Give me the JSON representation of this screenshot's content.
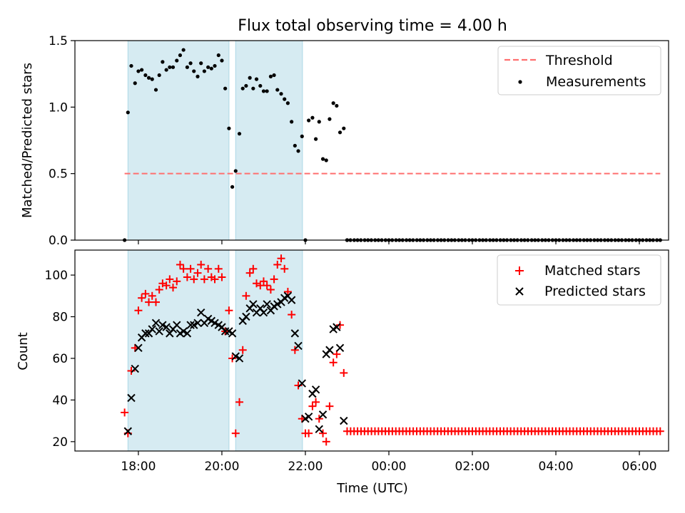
{
  "chart_data": [
    {
      "type": "scatter",
      "title": "Flux total observing time = 4.00 h",
      "xlabel": "",
      "ylabel": "Matched/Predicted stars",
      "ylim": [
        0,
        1.5
      ],
      "yticks": [
        "0.0",
        "0.5",
        "1.0",
        "1.5"
      ],
      "xlim": [
        -1.52,
        12.7
      ],
      "x_unit": "hours from 18:00 UTC",
      "show_x_tick_labels": false,
      "grid": false,
      "legend_position": "upper right",
      "shaded_time_ranges": [
        [
          -0.25,
          2.17
        ],
        [
          2.33,
          3.93
        ]
      ],
      "series": [
        {
          "name": "Threshold",
          "kind": "dashed-line",
          "color": "#ff6f6f",
          "x": [
            -0.33,
            12.5
          ],
          "y": [
            0.5,
            0.5
          ]
        },
        {
          "name": "Measurements",
          "kind": "dot",
          "color": "#000000",
          "x": [
            -0.33,
            -0.25,
            -0.17,
            -0.08,
            0.0,
            0.08,
            0.17,
            0.25,
            0.33,
            0.42,
            0.5,
            0.58,
            0.67,
            0.75,
            0.83,
            0.92,
            1.0,
            1.08,
            1.17,
            1.25,
            1.33,
            1.42,
            1.5,
            1.58,
            1.67,
            1.75,
            1.83,
            1.92,
            2.0,
            2.08,
            2.17,
            2.25,
            2.33,
            2.42,
            2.5,
            2.58,
            2.67,
            2.75,
            2.83,
            2.92,
            3.0,
            3.08,
            3.17,
            3.25,
            3.33,
            3.42,
            3.5,
            3.58,
            3.67,
            3.75,
            3.83,
            3.92,
            4.0,
            4.08,
            4.17,
            4.25,
            4.33,
            4.42,
            4.5,
            4.58,
            4.67,
            4.75,
            4.83,
            4.92,
            5.0
          ],
          "y": [
            0.0,
            0.96,
            1.31,
            1.18,
            1.27,
            1.28,
            1.24,
            1.22,
            1.21,
            1.13,
            1.24,
            1.34,
            1.28,
            1.3,
            1.3,
            1.35,
            1.39,
            1.43,
            1.3,
            1.33,
            1.27,
            1.23,
            1.33,
            1.27,
            1.3,
            1.29,
            1.31,
            1.39,
            1.35,
            1.14,
            0.84,
            0.4,
            0.52,
            0.8,
            1.14,
            1.16,
            1.22,
            1.14,
            1.21,
            1.16,
            1.12,
            1.12,
            1.23,
            1.24,
            1.13,
            1.1,
            1.06,
            1.03,
            0.89,
            0.71,
            0.67,
            0.78,
            0.0,
            0.9,
            0.92,
            0.76,
            0.89,
            0.61,
            0.6,
            0.91,
            1.03,
            1.01,
            0.81,
            0.84,
            0.0
          ]
        }
      ],
      "zero_measurements_x": [
        5.0,
        5.08,
        5.17,
        5.25,
        5.33,
        5.42,
        5.5,
        5.58,
        5.67,
        5.75,
        5.83,
        5.92,
        6.0,
        6.08,
        6.17,
        6.25,
        6.33,
        6.42,
        6.5,
        6.58,
        6.67,
        6.75,
        6.83,
        6.92,
        7.0,
        7.08,
        7.17,
        7.25,
        7.33,
        7.42,
        7.5,
        7.58,
        7.67,
        7.75,
        7.83,
        7.92,
        8.0,
        8.08,
        8.17,
        8.25,
        8.33,
        8.42,
        8.5,
        8.58,
        8.67,
        8.75,
        8.83,
        8.92,
        9.0,
        9.08,
        9.17,
        9.25,
        9.33,
        9.42,
        9.5,
        9.58,
        9.67,
        9.75,
        9.83,
        9.92,
        10.0,
        10.08,
        10.17,
        10.25,
        10.33,
        10.42,
        10.5,
        10.58,
        10.67,
        10.75,
        10.83,
        10.92,
        11.0,
        11.08,
        11.17,
        11.25,
        11.33,
        11.42,
        11.5,
        11.58,
        11.67,
        11.75,
        11.83,
        11.92,
        12.0,
        12.08,
        12.17,
        12.25,
        12.33,
        12.42,
        12.5
      ]
    },
    {
      "type": "scatter",
      "title": "",
      "xlabel": "Time (UTC)",
      "ylabel": "Count",
      "ylim": [
        15.5,
        112
      ],
      "yticks": [
        "20",
        "40",
        "60",
        "80",
        "100"
      ],
      "xlim": [
        -1.52,
        12.7
      ],
      "x_unit": "hours from 18:00 UTC",
      "xticks": [
        "18:00",
        "20:00",
        "22:00",
        "00:00",
        "02:00",
        "04:00",
        "06:00"
      ],
      "grid": false,
      "legend_position": "upper right",
      "shaded_time_ranges": [
        [
          -0.25,
          2.17
        ],
        [
          2.33,
          3.93
        ]
      ],
      "series": [
        {
          "name": "Matched stars",
          "kind": "plus",
          "color": "#ff0000",
          "x": [
            -0.33,
            -0.25,
            -0.17,
            -0.08,
            0.0,
            0.08,
            0.17,
            0.25,
            0.33,
            0.42,
            0.5,
            0.58,
            0.67,
            0.75,
            0.83,
            0.92,
            1.0,
            1.08,
            1.17,
            1.25,
            1.33,
            1.42,
            1.5,
            1.58,
            1.67,
            1.75,
            1.83,
            1.92,
            2.0,
            2.08,
            2.17,
            2.25,
            2.33,
            2.42,
            2.5,
            2.58,
            2.67,
            2.75,
            2.83,
            2.92,
            3.0,
            3.08,
            3.17,
            3.25,
            3.33,
            3.42,
            3.5,
            3.58,
            3.67,
            3.75,
            3.83,
            3.92,
            4.0,
            4.08,
            4.17,
            4.25,
            4.33,
            4.42,
            4.5,
            4.58,
            4.67,
            4.75,
            4.83,
            4.92
          ],
          "y": [
            34,
            24,
            54,
            65,
            83,
            89,
            91,
            87,
            90,
            87,
            93,
            96,
            95,
            98,
            94,
            97,
            105,
            103,
            99,
            103,
            98,
            101,
            105,
            98,
            103,
            99,
            98,
            103,
            99,
            73,
            83,
            60,
            24,
            39,
            64,
            90,
            101,
            103,
            96,
            95,
            97,
            95,
            93,
            98,
            105,
            108,
            103,
            92,
            81,
            64,
            47,
            31,
            24,
            24,
            37,
            39,
            31,
            24,
            20,
            37,
            58,
            62,
            76,
            53
          ]
        },
        {
          "name": "Predicted stars",
          "kind": "x",
          "color": "#000000",
          "x": [
            -0.25,
            -0.17,
            -0.08,
            0.0,
            0.08,
            0.17,
            0.25,
            0.33,
            0.42,
            0.5,
            0.58,
            0.67,
            0.75,
            0.83,
            0.92,
            1.0,
            1.08,
            1.17,
            1.25,
            1.33,
            1.42,
            1.5,
            1.58,
            1.67,
            1.75,
            1.83,
            1.92,
            2.0,
            2.08,
            2.17,
            2.25,
            2.33,
            2.42,
            2.5,
            2.58,
            2.67,
            2.75,
            2.83,
            2.92,
            3.0,
            3.08,
            3.17,
            3.25,
            3.33,
            3.42,
            3.5,
            3.58,
            3.67,
            3.75,
            3.83,
            3.92,
            4.0,
            4.08,
            4.17,
            4.25,
            4.33,
            4.42,
            4.5,
            4.58,
            4.67,
            4.75,
            4.83,
            4.92
          ],
          "y": [
            25,
            41,
            55,
            65,
            70,
            72,
            72,
            74,
            77,
            73,
            76,
            75,
            72,
            74,
            76,
            72,
            73,
            72,
            76,
            76,
            77,
            82,
            77,
            79,
            78,
            77,
            76,
            75,
            73,
            73,
            72,
            61,
            60,
            78,
            80,
            84,
            86,
            82,
            84,
            82,
            86,
            83,
            85,
            86,
            87,
            89,
            90,
            88,
            72,
            66,
            48,
            31,
            32,
            43,
            45,
            26,
            33,
            62,
            64,
            74,
            75,
            65,
            30
          ]
        },
        {
          "name": "Matched stars (constant)",
          "kind": "plus",
          "color": "#ff0000",
          "x_start": 5.0,
          "x_end": 12.5,
          "x_step": 0.08333,
          "y": 25
        }
      ]
    }
  ]
}
